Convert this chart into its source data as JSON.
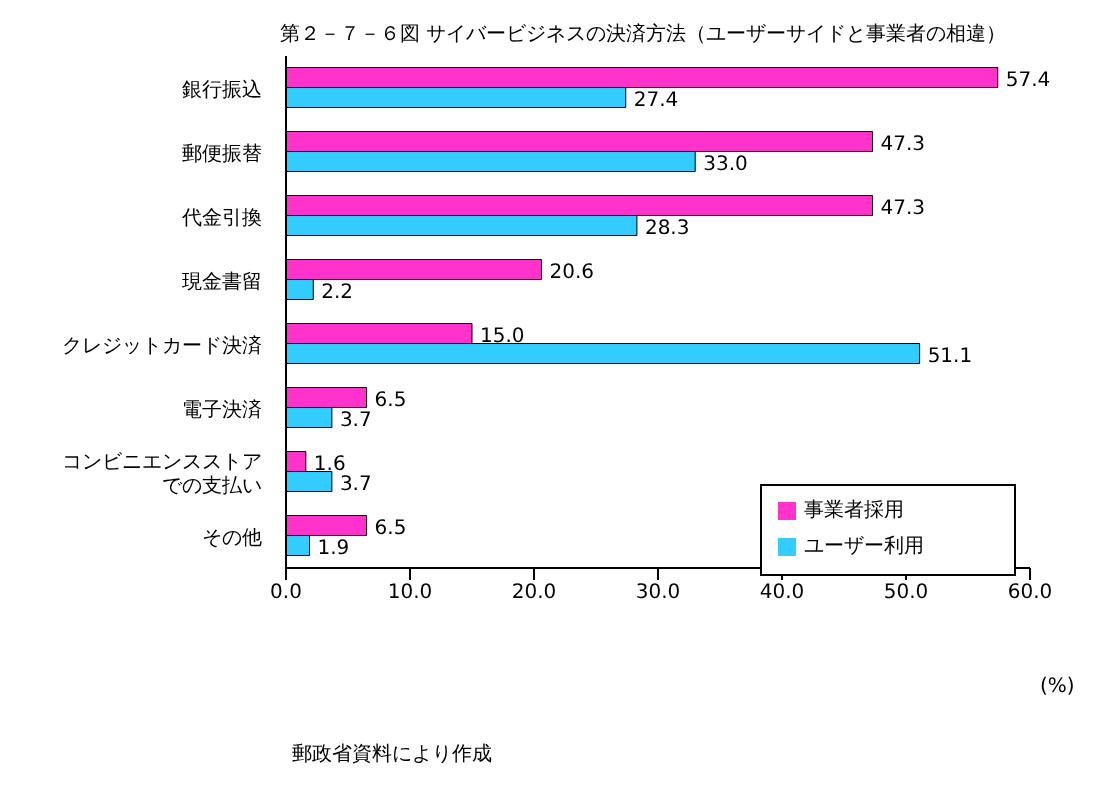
{
  "chart_data": {
    "type": "bar",
    "orientation": "horizontal",
    "title": "第２－７－６図 サイバービジネスの決済方法（ユーザーサイドと事業者の相違）",
    "xlabel": "(%)",
    "annotations": [
      "郵政省資料により作成"
    ],
    "categories": [
      "銀行振込",
      "郵便振替",
      "代金引換",
      "現金書留",
      "クレジットカード決済",
      "電子決済",
      "コンビニエンスストアでの支払い",
      "その他"
    ],
    "series": [
      {
        "name": "事業者採用",
        "color": "#ff33cc",
        "values": [
          57.4,
          47.3,
          47.3,
          20.6,
          15.0,
          6.5,
          1.6,
          6.5
        ],
        "value_labels": [
          "57.4",
          "47.3",
          "47.3",
          "20.6",
          "15.0",
          "6.5",
          "1.6",
          "6.5"
        ]
      },
      {
        "name": "ユーザー利用",
        "color": "#33ccff",
        "values": [
          27.4,
          33.0,
          28.3,
          2.2,
          51.1,
          3.7,
          3.7,
          1.9
        ],
        "value_labels": [
          "27.4",
          "33.0",
          "28.3",
          "2.2",
          "51.1",
          "3.7",
          "3.7",
          "1.9"
        ]
      }
    ],
    "xlim": [
      0,
      60
    ],
    "xticks": [
      {
        "value": 0,
        "label": "0.0"
      },
      {
        "value": 10,
        "label": "10.0"
      },
      {
        "value": 20,
        "label": "20.0"
      },
      {
        "value": 30,
        "label": "30.0"
      },
      {
        "value": 40,
        "label": "40.0"
      },
      {
        "value": 50,
        "label": "50.0"
      },
      {
        "value": 60,
        "label": "60.0"
      }
    ],
    "grid": false,
    "legend": "bottom right"
  }
}
